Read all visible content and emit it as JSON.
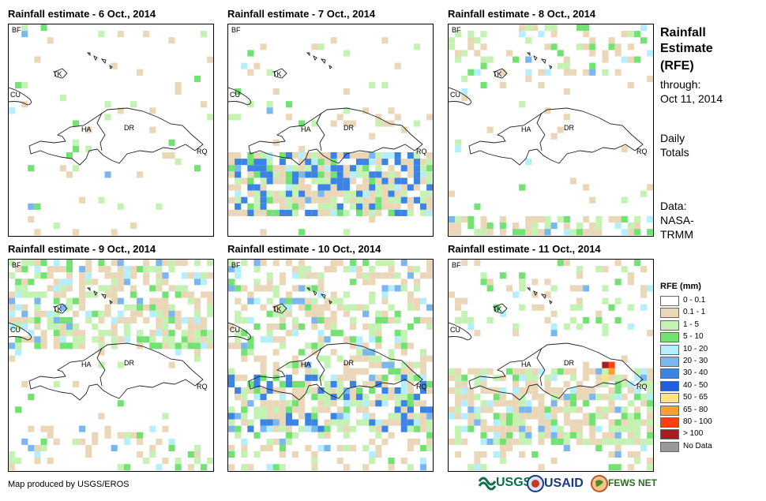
{
  "panels": [
    {
      "title": "Rainfall estimate - 6 Oct., 2014",
      "seed": 6,
      "bands": [
        [
          44,
          4,
          0.05
        ]
      ],
      "hot": []
    },
    {
      "title": "Rainfall estimate - 7 Oct., 2014",
      "seed": 7,
      "bands": [
        [
          14,
          2,
          0.25
        ],
        [
          20,
          10,
          0.85
        ]
      ],
      "hot": []
    },
    {
      "title": "Rainfall estimate - 8 Oct., 2014",
      "seed": 8,
      "bands": [
        [
          0,
          8,
          0.35
        ],
        [
          30,
          12,
          0.6
        ]
      ],
      "hot": []
    },
    {
      "title": "Rainfall estimate - 9 Oct., 2014",
      "seed": 9,
      "bands": [
        [
          0,
          14,
          0.6
        ],
        [
          26,
          12,
          0.25
        ]
      ],
      "hot": []
    },
    {
      "title": "Rainfall estimate - 10 Oct., 2014",
      "seed": 10,
      "bands": [
        [
          0,
          18,
          0.5
        ],
        [
          18,
          9,
          0.75
        ],
        [
          27,
          15,
          0.3
        ]
      ],
      "hot": [
        [
          22,
          14,
          5
        ],
        [
          23,
          19,
          6
        ],
        [
          24,
          16,
          5
        ]
      ]
    },
    {
      "title": "Rainfall estimate - 11 Oct., 2014",
      "seed": 11,
      "bands": [
        [
          0,
          12,
          0.2
        ],
        [
          17,
          12,
          0.7
        ],
        [
          29,
          13,
          0.25
        ]
      ],
      "hot": [
        [
          24,
          16,
          11
        ],
        [
          25,
          16,
          10
        ],
        [
          25,
          17,
          9
        ],
        [
          24,
          18,
          8
        ]
      ]
    }
  ],
  "map_labels": {
    "bf": "BF",
    "tk": "TK",
    "cu": "CU",
    "ha": "HA",
    "dr": "DR",
    "rq": "RQ"
  },
  "sidebar": {
    "title_line1": "Rainfall",
    "title_line2": "Estimate",
    "title_line3": "(RFE)",
    "through_label": "through:",
    "through_date": "Oct 11, 2014",
    "daily_line1": "Daily",
    "daily_line2": "Totals",
    "data_line1": "Data:",
    "data_line2": "NASA-",
    "data_line3": "TRMM"
  },
  "legend": {
    "title": "RFE (mm)",
    "items": [
      {
        "label": "0 - 0.1",
        "color": "#ffffff"
      },
      {
        "label": "0.1 - 1",
        "color": "#ead7b7"
      },
      {
        "label": "1 - 5",
        "color": "#c3f2b2"
      },
      {
        "label": "5 - 10",
        "color": "#72e272"
      },
      {
        "label": "10 - 20",
        "color": "#b5efff"
      },
      {
        "label": "20 - 30",
        "color": "#7ab6ef"
      },
      {
        "label": "30 - 40",
        "color": "#3c84e4"
      },
      {
        "label": "40 - 50",
        "color": "#1f5ee0"
      },
      {
        "label": "50 - 65",
        "color": "#fde481"
      },
      {
        "label": "65 - 80",
        "color": "#f9a12e"
      },
      {
        "label": "80 - 100",
        "color": "#ff3f10"
      },
      {
        "label": "> 100",
        "color": "#a51d23"
      },
      {
        "label": "No Data",
        "color": "#999999"
      }
    ]
  },
  "footer": {
    "credit": "Map produced by USGS/EROS",
    "logo_usgs": "USGS",
    "logo_usaid": "USAID",
    "logo_fews": "FEWS NET"
  }
}
